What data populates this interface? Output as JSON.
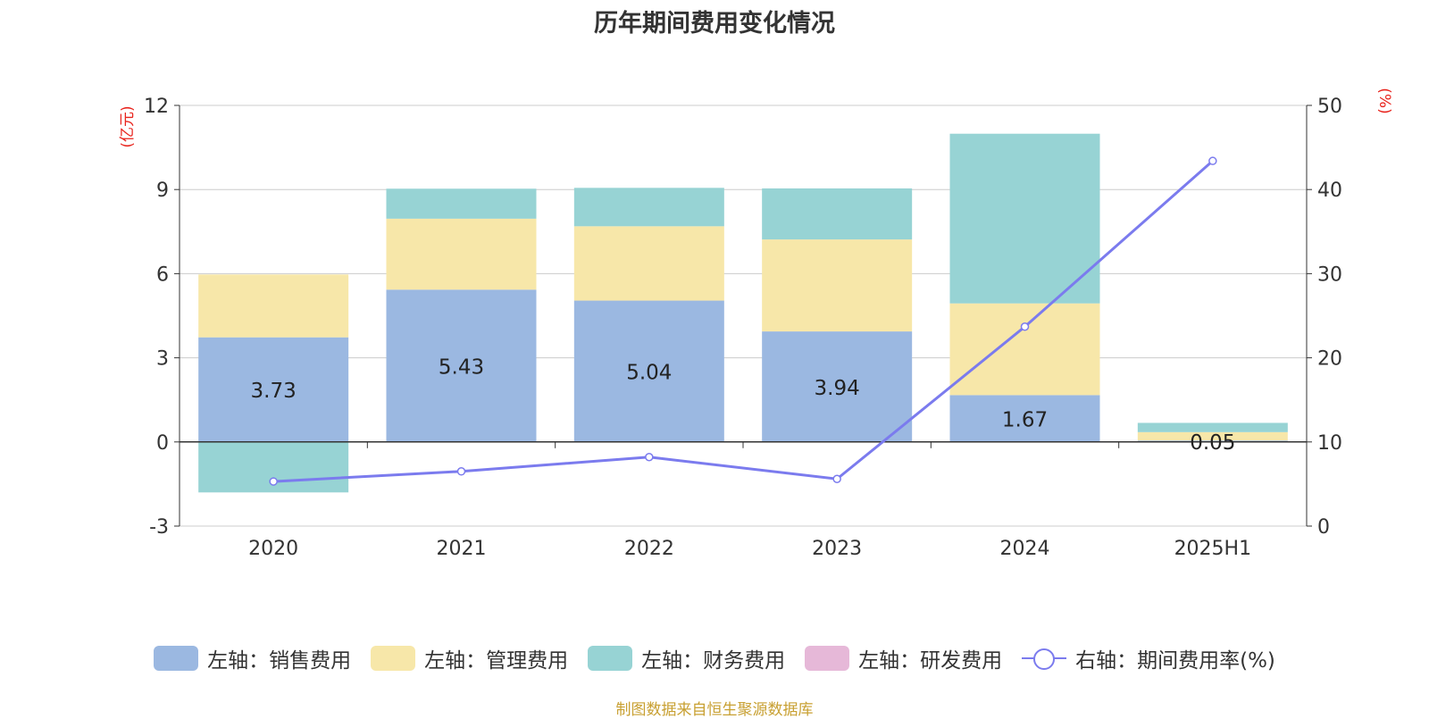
{
  "title": "历年期间费用变化情况",
  "source": "制图数据来自恒生聚源数据库",
  "chart_data": {
    "type": "bar",
    "categories": [
      "2020",
      "2021",
      "2022",
      "2023",
      "2024",
      "2025H1"
    ],
    "left_axis": {
      "unit_label": "(亿元)",
      "ylim": [
        -3,
        12
      ],
      "ticks": [
        -3,
        0,
        3,
        6,
        9,
        12
      ]
    },
    "right_axis": {
      "unit_label": "(%)",
      "ylim": [
        0,
        50
      ],
      "ticks": [
        0,
        10,
        20,
        30,
        40,
        50
      ]
    },
    "series": [
      {
        "name": "左轴：销售费用",
        "type": "bar",
        "stack": true,
        "color": "#9bb8e1",
        "values": [
          3.73,
          5.43,
          5.04,
          3.94,
          1.67,
          0.05
        ],
        "labels": [
          "3.73",
          "5.43",
          "5.04",
          "3.94",
          "1.67",
          "0.05"
        ]
      },
      {
        "name": "左轴：管理费用",
        "type": "bar",
        "stack": true,
        "color": "#f7e7a9",
        "values": [
          2.24,
          2.53,
          2.65,
          3.28,
          3.27,
          0.3
        ]
      },
      {
        "name": "左轴：财务费用",
        "type": "bar",
        "stack": true,
        "color": "#97d3d4",
        "values": [
          -1.8,
          1.07,
          1.37,
          1.82,
          6.05,
          0.33
        ]
      },
      {
        "name": "左轴：研发费用",
        "type": "bar",
        "stack": true,
        "color": "#e6b8d8",
        "values": [
          0,
          0,
          0,
          0,
          0,
          0
        ]
      },
      {
        "name": "右轴：期间费用率(%)",
        "type": "line",
        "axis": "right",
        "color": "#7b7bee",
        "values": [
          5.3,
          6.5,
          8.2,
          5.6,
          23.7,
          43.4
        ]
      }
    ],
    "grid": true,
    "legend": "bottom"
  }
}
